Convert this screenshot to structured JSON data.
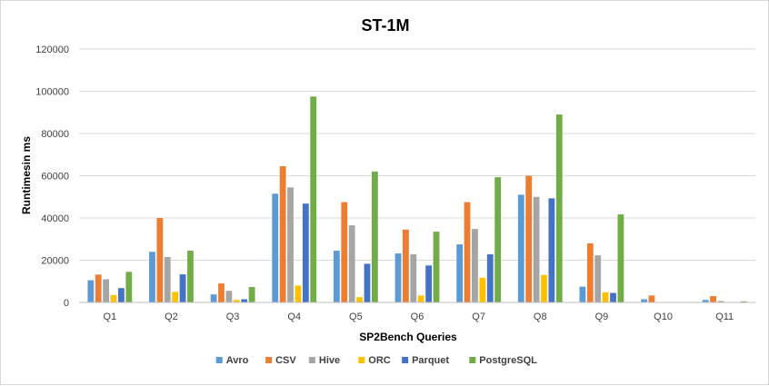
{
  "chart_data": {
    "type": "bar",
    "title": "ST-1M",
    "xlabel": "SP2Bench Queries",
    "ylabel": "Runtimesin ms",
    "ylim": [
      0,
      120000
    ],
    "yticks": [
      0,
      20000,
      40000,
      60000,
      80000,
      100000,
      120000
    ],
    "grid": true,
    "legend_position": "bottom",
    "categories": [
      "Q1",
      "Q2",
      "Q3",
      "Q4",
      "Q5",
      "Q6",
      "Q7",
      "Q8",
      "Q9",
      "Q10",
      "Q11"
    ],
    "series": [
      {
        "name": "Avro",
        "color": "#5b9bd5",
        "values": [
          10500,
          24000,
          3800,
          51500,
          24500,
          23200,
          27500,
          51000,
          7500,
          1500,
          1200
        ]
      },
      {
        "name": "CSV",
        "color": "#ed7d31",
        "values": [
          13200,
          40000,
          9000,
          64500,
          47500,
          34500,
          47500,
          60000,
          28000,
          3300,
          3000
        ]
      },
      {
        "name": "Hive",
        "color": "#a5a5a5",
        "values": [
          11000,
          21500,
          5500,
          54500,
          36500,
          22800,
          34800,
          50000,
          22300,
          0,
          700
        ]
      },
      {
        "name": "ORC",
        "color": "#ffc000",
        "values": [
          3500,
          5000,
          1200,
          8000,
          2500,
          3300,
          11700,
          13000,
          4800,
          0,
          0
        ]
      },
      {
        "name": "Parquet",
        "color": "#4472c4",
        "values": [
          6800,
          13300,
          1500,
          46800,
          18300,
          17500,
          22800,
          49300,
          4500,
          0,
          0
        ]
      },
      {
        "name": "PostgreSQL",
        "color": "#70ad47",
        "values": [
          14500,
          24500,
          7300,
          97500,
          62000,
          33500,
          59300,
          89000,
          41700,
          0,
          500
        ]
      }
    ]
  }
}
